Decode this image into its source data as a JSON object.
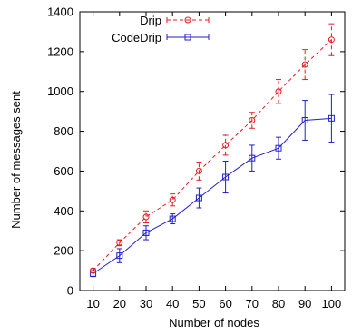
{
  "chart_data": {
    "type": "line",
    "title": "",
    "xlabel": "Number of nodes",
    "ylabel": "Number of messages sent",
    "x": [
      10,
      20,
      30,
      40,
      50,
      60,
      70,
      80,
      90,
      100
    ],
    "xlim": [
      5,
      105
    ],
    "ylim": [
      0,
      1400
    ],
    "yticks": [
      0,
      200,
      400,
      600,
      800,
      1000,
      1200,
      1400
    ],
    "legend_position": "top-left",
    "grid": false,
    "series": [
      {
        "name": "Drip",
        "color": "#e41a1c",
        "line_style": "dashed",
        "marker": "circle",
        "values": [
          100,
          240,
          370,
          455,
          600,
          730,
          855,
          1000,
          1135,
          1260
        ],
        "error": [
          10,
          15,
          30,
          30,
          45,
          50,
          40,
          60,
          75,
          80
        ]
      },
      {
        "name": "CodeDrip",
        "color": "#1f1fcf",
        "line_style": "solid",
        "marker": "square",
        "values": [
          85,
          175,
          290,
          360,
          465,
          570,
          665,
          715,
          855,
          865
        ],
        "error": [
          15,
          35,
          35,
          25,
          50,
          80,
          65,
          55,
          100,
          120
        ]
      }
    ]
  }
}
